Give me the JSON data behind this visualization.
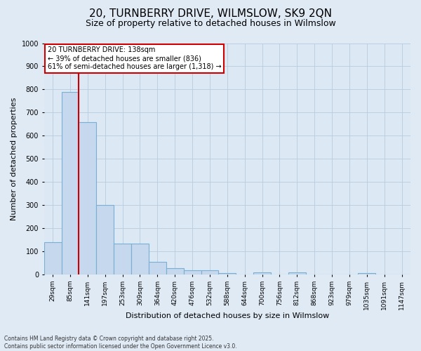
{
  "title_line1": "20, TURNBERRY DRIVE, WILMSLOW, SK9 2QN",
  "title_line2": "Size of property relative to detached houses in Wilmslow",
  "xlabel": "Distribution of detached houses by size in Wilmslow",
  "ylabel": "Number of detached properties",
  "bin_labels": [
    "29sqm",
    "85sqm",
    "141sqm",
    "197sqm",
    "253sqm",
    "309sqm",
    "364sqm",
    "420sqm",
    "476sqm",
    "532sqm",
    "588sqm",
    "644sqm",
    "700sqm",
    "756sqm",
    "812sqm",
    "868sqm",
    "923sqm",
    "979sqm",
    "1035sqm",
    "1091sqm",
    "1147sqm"
  ],
  "bar_heights": [
    140,
    790,
    660,
    300,
    135,
    135,
    55,
    28,
    18,
    18,
    5,
    0,
    10,
    0,
    10,
    0,
    0,
    0,
    5,
    0,
    0
  ],
  "bar_color": "#c5d8ee",
  "bar_edge_color": "#7aafd4",
  "ylim_max": 1000,
  "yticks": [
    0,
    100,
    200,
    300,
    400,
    500,
    600,
    700,
    800,
    900,
    1000
  ],
  "vline_color": "#cc0000",
  "vline_x": 1.5,
  "annotation_line1": "20 TURNBERRY DRIVE: 138sqm",
  "annotation_line2": "← 39% of detached houses are smaller (836)",
  "annotation_line3": "61% of semi-detached houses are larger (1,318) →",
  "box_facecolor": "#ffffff",
  "box_edgecolor": "#cc0000",
  "plot_bg": "#dce9f5",
  "fig_bg": "#e0eaf5",
  "grid_color": "#b8ccde",
  "title_fontsize": 11,
  "subtitle_fontsize": 9,
  "ylabel_fontsize": 8,
  "xlabel_fontsize": 8,
  "tick_fontsize": 6.5,
  "ann_fontsize": 7,
  "footer_fontsize": 5.5,
  "footer_line1": "Contains HM Land Registry data © Crown copyright and database right 2025.",
  "footer_line2": "Contains public sector information licensed under the Open Government Licence v3.0."
}
